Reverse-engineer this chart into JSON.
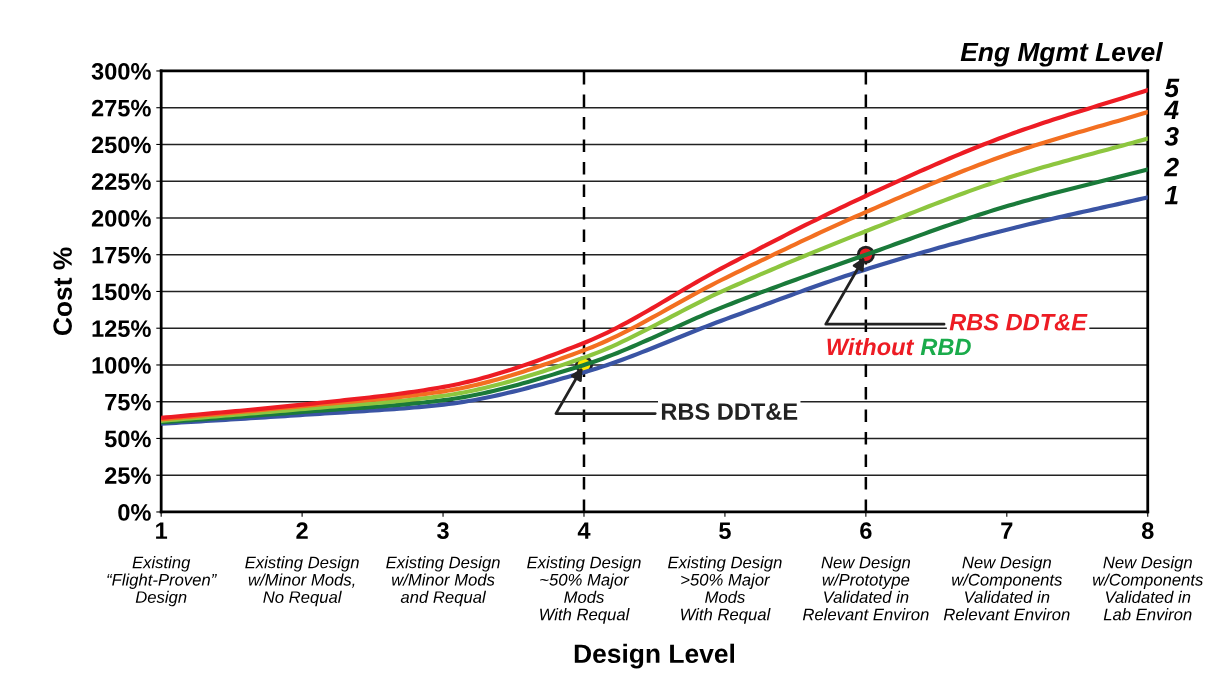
{
  "chart_data": {
    "type": "line",
    "xlabel": "Design Level",
    "ylabel": "Cost %",
    "legend_title": "Eng Mgmt Level",
    "x": [
      1,
      2,
      3,
      4,
      5,
      6,
      7,
      8
    ],
    "series": [
      {
        "name": "1",
        "color": "#3a54a4",
        "values": [
          60,
          66,
          73,
          95,
          131,
          165,
          192,
          214
        ]
      },
      {
        "name": "2",
        "color": "#1a7a3a",
        "values": [
          61,
          68,
          76,
          100,
          140,
          175,
          208,
          233
        ]
      },
      {
        "name": "3",
        "color": "#8dc63f",
        "values": [
          62,
          70,
          79,
          105,
          151,
          191,
          227,
          254
        ]
      },
      {
        "name": "4",
        "color": "#f36f21",
        "values": [
          63,
          72,
          82,
          110,
          159,
          204,
          243,
          272
        ]
      },
      {
        "name": "5",
        "color": "#ed1c24",
        "values": [
          64,
          73,
          85,
          115,
          167,
          215,
          256,
          287
        ]
      }
    ],
    "xlim": [
      1,
      8
    ],
    "xticks": [
      1,
      2,
      3,
      4,
      5,
      6,
      7,
      8
    ],
    "ylim": [
      0,
      300
    ],
    "yticks": [
      {
        "value": 0,
        "label": "0%"
      },
      {
        "value": 25,
        "label": "25%"
      },
      {
        "value": 50,
        "label": "50%"
      },
      {
        "value": 75,
        "label": "75%"
      },
      {
        "value": 100,
        "label": "100%"
      },
      {
        "value": 125,
        "label": "125%"
      },
      {
        "value": 150,
        "label": "150%"
      },
      {
        "value": 175,
        "label": "175%"
      },
      {
        "value": 200,
        "label": "200%"
      },
      {
        "value": 225,
        "label": "225%"
      },
      {
        "value": 250,
        "label": "250%"
      },
      {
        "value": 275,
        "label": "275%"
      },
      {
        "value": 300,
        "label": "300%"
      }
    ],
    "grid": "y",
    "legend": false,
    "marker": "none",
    "line_style": "solid",
    "ref_lines": [
      {
        "axis": "x",
        "value": 4,
        "color": "#000000",
        "line_style": "dashed"
      },
      {
        "axis": "x",
        "value": 6,
        "color": "#000000",
        "line_style": "dashed"
      }
    ],
    "annotations": [
      "Existing\n“Flight-Proven”\nDesign",
      "Existing Design\nw/Minor Mods,\nNo Requal",
      "Existing Design\nw/Minor Mods\nand Requal",
      "Existing Design\n~50% Major\nMods\nWith Requal",
      "Existing Design\n>50% Major\nMods\nWith Requal",
      "New Design\nw/Prototype\nValidated in\nRelevant Environ",
      "New Design\nw/Components\nValidated in\nRelevant Environ",
      "New Design\nw/Components\nValidated in\nLab Environ",
      {
        "text": "RBS DDT&E",
        "x": 4,
        "y": 100
      },
      {
        "text": "RBS DDT&E",
        "x": 6,
        "y": 175
      },
      "Without",
      "RBD"
    ]
  }
}
